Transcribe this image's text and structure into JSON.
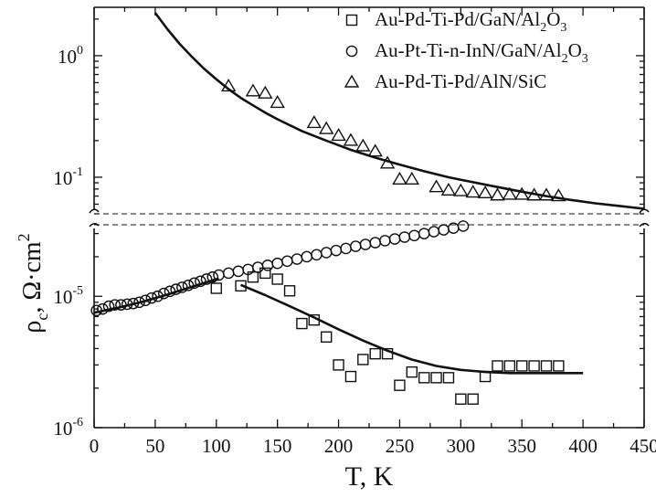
{
  "chart_data": {
    "type": "scatter",
    "xlabel": "T, K",
    "ylabel": "ρc, Ω·cm2",
    "xlim": [
      0,
      450
    ],
    "xticks": [
      "0",
      "50",
      "100",
      "150",
      "200",
      "250",
      "300",
      "350",
      "400",
      "450"
    ],
    "ylim_lower": [
      1e-06,
      3.5e-05
    ],
    "ylim_upper": [
      0.05,
      2.5
    ],
    "yticks_lower": [
      {
        "value": 1e-06,
        "base": "10",
        "exp": "-6"
      },
      {
        "value": 1e-05,
        "base": "10",
        "exp": "-5"
      }
    ],
    "yticks_upper": [
      {
        "value": 0.1,
        "base": "10",
        "exp": "-1"
      },
      {
        "value": 1,
        "base": "10",
        "exp": "0"
      }
    ],
    "axis_break": true,
    "legend": {
      "placement": "top-right",
      "entries": [
        {
          "marker": "square",
          "parts": [
            [
              "Au-Pd-Ti-Pd/GaN/Al",
              ""
            ],
            [
              "2",
              "sub"
            ],
            [
              "O",
              ""
            ],
            [
              "3",
              "sub"
            ]
          ]
        },
        {
          "marker": "circle",
          "parts": [
            [
              "Au-Pt-Ti-n-InN/GaN/Al",
              ""
            ],
            [
              "2",
              "sub"
            ],
            [
              "O",
              ""
            ],
            [
              "3",
              "sub"
            ]
          ]
        },
        {
          "marker": "triangle",
          "parts": [
            [
              "Au-Pd-Ti-Pd/AlN/SiC",
              ""
            ]
          ]
        }
      ]
    },
    "series": [
      {
        "marker": "square",
        "panel": "lower",
        "points": [
          [
            100,
            1.15e-05
          ],
          [
            120,
            1.2e-05
          ],
          [
            130,
            1.4e-05
          ],
          [
            140,
            1.5e-05
          ],
          [
            150,
            1.35e-05
          ],
          [
            160,
            1.1e-05
          ],
          [
            170,
            6.2e-06
          ],
          [
            180,
            6.6e-06
          ],
          [
            190,
            4.9e-06
          ],
          [
            200,
            3e-06
          ],
          [
            210,
            2.45e-06
          ],
          [
            220,
            3.3e-06
          ],
          [
            230,
            3.65e-06
          ],
          [
            240,
            3.65e-06
          ],
          [
            250,
            2.1e-06
          ],
          [
            260,
            2.65e-06
          ],
          [
            270,
            2.4e-06
          ],
          [
            280,
            2.4e-06
          ],
          [
            290,
            2.4e-06
          ],
          [
            300,
            1.65e-06
          ],
          [
            310,
            1.65e-06
          ],
          [
            320,
            2.45e-06
          ],
          [
            330,
            2.95e-06
          ],
          [
            340,
            2.95e-06
          ],
          [
            350,
            2.95e-06
          ],
          [
            360,
            2.95e-06
          ],
          [
            370,
            2.95e-06
          ],
          [
            380,
            2.95e-06
          ]
        ]
      },
      {
        "marker": "circle",
        "panel": "lower",
        "points": [
          [
            2,
            7.8e-06
          ],
          [
            7,
            8e-06
          ],
          [
            12,
            8.4e-06
          ],
          [
            17,
            8.6e-06
          ],
          [
            22,
            8.6e-06
          ],
          [
            27,
            8.7e-06
          ],
          [
            32,
            8.8e-06
          ],
          [
            37,
            9e-06
          ],
          [
            42,
            9.3e-06
          ],
          [
            47,
            9.7e-06
          ],
          [
            52,
            1e-05
          ],
          [
            57,
            1.05e-05
          ],
          [
            62,
            1.09e-05
          ],
          [
            67,
            1.13e-05
          ],
          [
            72,
            1.17e-05
          ],
          [
            77,
            1.21e-05
          ],
          [
            82,
            1.26e-05
          ],
          [
            87,
            1.3e-05
          ],
          [
            92,
            1.35e-05
          ],
          [
            97,
            1.4e-05
          ],
          [
            102,
            1.45e-05
          ],
          [
            110,
            1.5e-05
          ],
          [
            118,
            1.55e-05
          ],
          [
            126,
            1.6e-05
          ],
          [
            134,
            1.66e-05
          ],
          [
            142,
            1.72e-05
          ],
          [
            150,
            1.78e-05
          ],
          [
            158,
            1.85e-05
          ],
          [
            166,
            1.92e-05
          ],
          [
            174,
            2e-05
          ],
          [
            182,
            2.07e-05
          ],
          [
            190,
            2.15e-05
          ],
          [
            198,
            2.23e-05
          ],
          [
            206,
            2.31e-05
          ],
          [
            214,
            2.4e-05
          ],
          [
            222,
            2.48e-05
          ],
          [
            230,
            2.56e-05
          ],
          [
            238,
            2.65e-05
          ],
          [
            246,
            2.73e-05
          ],
          [
            254,
            2.82e-05
          ],
          [
            262,
            2.9e-05
          ],
          [
            270,
            3e-05
          ],
          [
            278,
            3.1e-05
          ],
          [
            286,
            3.2e-05
          ],
          [
            294,
            3.3e-05
          ],
          [
            302,
            3.42e-05
          ]
        ]
      },
      {
        "marker": "triangle",
        "panel": "upper",
        "points": [
          [
            110,
            0.56
          ],
          [
            130,
            0.51
          ],
          [
            140,
            0.49
          ],
          [
            150,
            0.41
          ],
          [
            180,
            0.28
          ],
          [
            190,
            0.25
          ],
          [
            200,
            0.22
          ],
          [
            210,
            0.2
          ],
          [
            220,
            0.18
          ],
          [
            230,
            0.163
          ],
          [
            240,
            0.13
          ],
          [
            250,
            0.096
          ],
          [
            260,
            0.096
          ],
          [
            280,
            0.083
          ],
          [
            290,
            0.078
          ],
          [
            300,
            0.077
          ],
          [
            310,
            0.075
          ],
          [
            320,
            0.074
          ],
          [
            330,
            0.071
          ],
          [
            340,
            0.072
          ],
          [
            350,
            0.072
          ],
          [
            360,
            0.071
          ],
          [
            370,
            0.071
          ],
          [
            380,
            0.07
          ]
        ]
      }
    ],
    "fit_curves": [
      {
        "panel": "upper",
        "points": [
          [
            50,
            2.25
          ],
          [
            60,
            1.65
          ],
          [
            70,
            1.25
          ],
          [
            80,
            0.98
          ],
          [
            90,
            0.78
          ],
          [
            100,
            0.64
          ],
          [
            110,
            0.53
          ],
          [
            120,
            0.45
          ],
          [
            130,
            0.39
          ],
          [
            140,
            0.34
          ],
          [
            150,
            0.3
          ],
          [
            170,
            0.24
          ],
          [
            190,
            0.2
          ],
          [
            210,
            0.168
          ],
          [
            230,
            0.145
          ],
          [
            250,
            0.127
          ],
          [
            270,
            0.112
          ],
          [
            290,
            0.1
          ],
          [
            310,
            0.091
          ],
          [
            330,
            0.083
          ],
          [
            350,
            0.076
          ],
          [
            370,
            0.07
          ],
          [
            390,
            0.065
          ],
          [
            410,
            0.061
          ],
          [
            430,
            0.058
          ],
          [
            450,
            0.055
          ]
        ]
      },
      {
        "panel": "lower",
        "points": [
          [
            0,
            7.5e-06
          ],
          [
            20,
            8.2e-06
          ],
          [
            40,
            9.1e-06
          ],
          [
            60,
            1.03e-05
          ],
          [
            80,
            1.18e-05
          ],
          [
            90,
            1.26e-05
          ],
          [
            100,
            1.35e-05
          ],
          [
            102,
            1.36e-05
          ]
        ]
      },
      {
        "panel": "lower",
        "points": [
          [
            120,
            1.22e-05
          ],
          [
            140,
            1.02e-05
          ],
          [
            160,
            8.4e-06
          ],
          [
            180,
            6.9e-06
          ],
          [
            200,
            5.6e-06
          ],
          [
            220,
            4.6e-06
          ],
          [
            240,
            3.85e-06
          ],
          [
            260,
            3.3e-06
          ],
          [
            280,
            2.95e-06
          ],
          [
            300,
            2.75e-06
          ],
          [
            320,
            2.65e-06
          ],
          [
            340,
            2.6e-06
          ],
          [
            360,
            2.6e-06
          ],
          [
            380,
            2.6e-06
          ],
          [
            400,
            2.6e-06
          ]
        ]
      }
    ]
  }
}
